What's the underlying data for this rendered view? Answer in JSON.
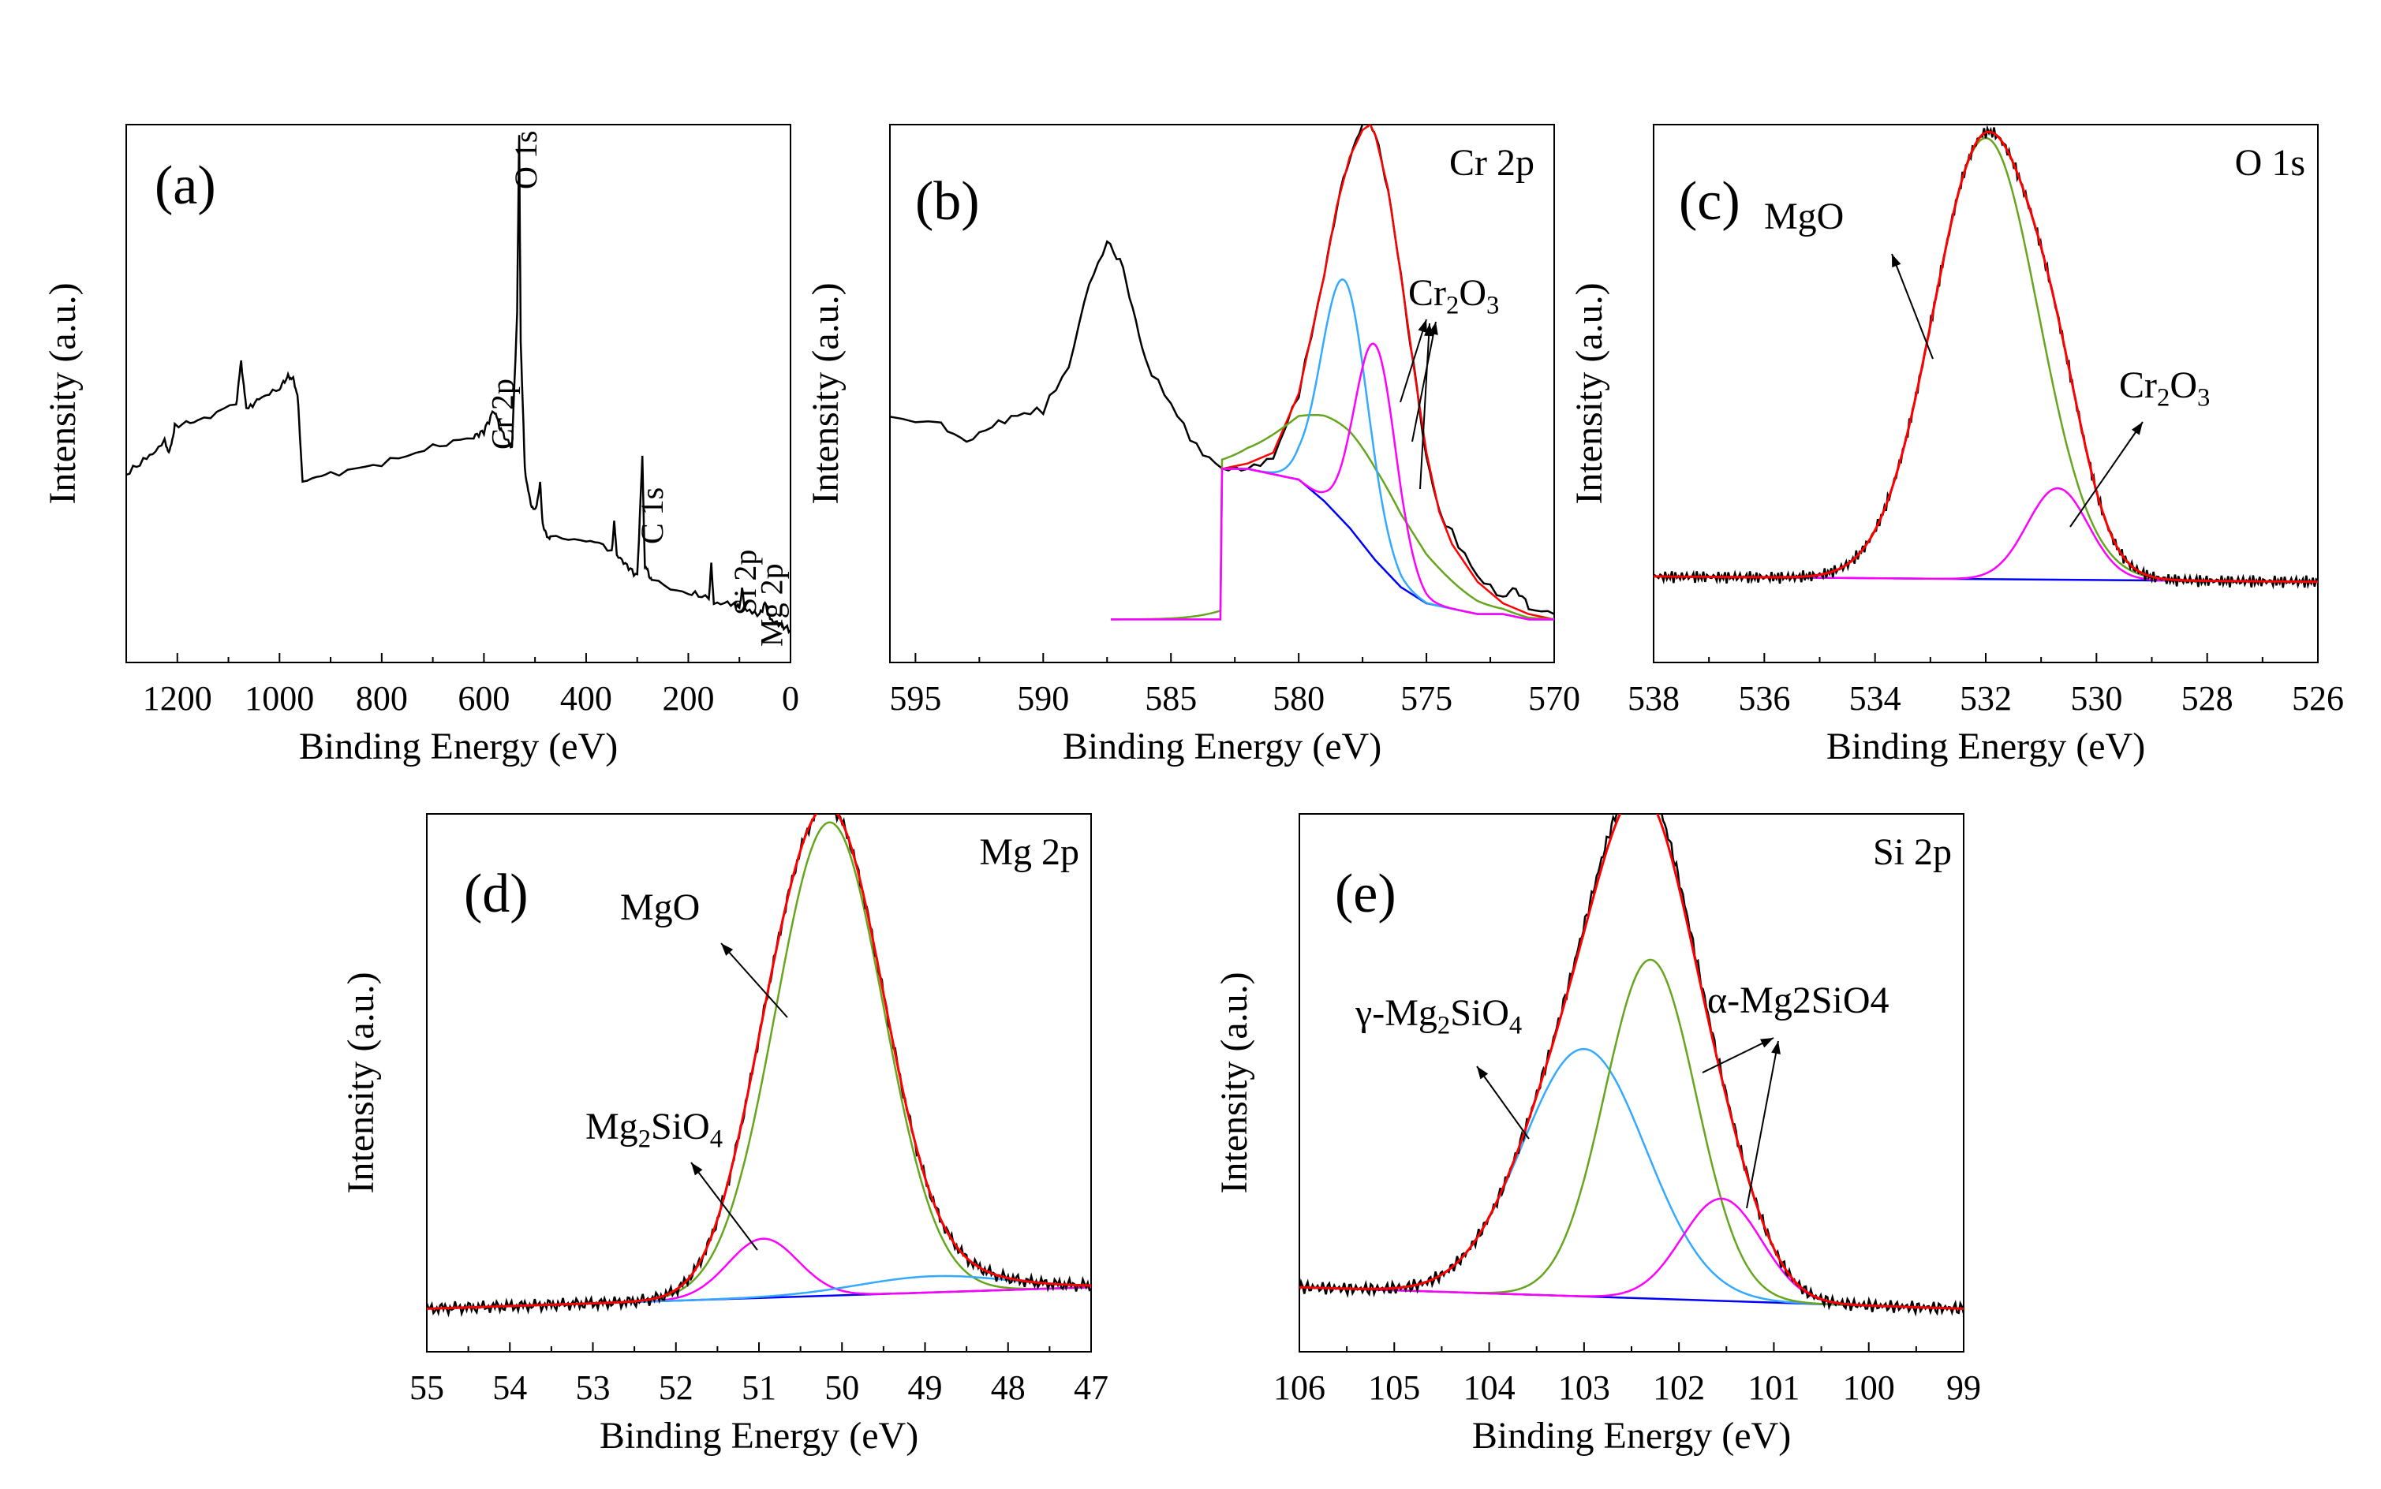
{
  "figure": {
    "description_panels": [
      "a",
      "b",
      "c",
      "d",
      "e"
    ]
  },
  "colors": {
    "data": "#000000",
    "envelope": "#ff0000",
    "background": "#0000ff",
    "green": "#66a61e",
    "cyan": "#33aaff",
    "magenta": "#ff00ff",
    "arrow": "#000000"
  },
  "chart_data": [
    {
      "panel": "(a)",
      "type": "line",
      "title": "",
      "xlabel": "Binding Energy (eV)",
      "ylabel": "Intensity (a.u.)",
      "xlim": [
        1300,
        0
      ],
      "ylim": [
        0,
        1.0
      ],
      "xticks": [
        1200,
        1000,
        800,
        600,
        400,
        200,
        0
      ],
      "xtick_labels": [
        "1200",
        "1000",
        "800",
        "600",
        "400",
        "200",
        "0"
      ],
      "peak_labels": [
        {
          "text": "O 1s",
          "x": 531
        },
        {
          "text": "Cr 2p",
          "x": 577
        },
        {
          "text": "C 1s",
          "x": 284
        },
        {
          "text": "Si 2p",
          "x": 102
        },
        {
          "text": "Mg 2p",
          "x": 50
        }
      ],
      "series": [
        {
          "name": "survey",
          "color": "data",
          "x": [
            1300,
            1260,
            1225,
            1215,
            1205,
            1160,
            1085,
            1075,
            1065,
            1040,
            1000,
            985,
            975,
            965,
            955,
            900,
            800,
            700,
            620,
            600,
            580,
            570,
            560,
            545,
            535,
            531,
            528,
            520,
            510,
            500,
            490,
            485,
            480,
            470,
            400,
            350,
            345,
            340,
            320,
            300,
            290,
            285,
            280,
            270,
            200,
            160,
            155,
            150,
            110,
            100,
            95,
            90,
            60,
            50,
            40,
            20,
            0
          ],
          "y": [
            0.35,
            0.38,
            0.41,
            0.39,
            0.44,
            0.45,
            0.48,
            0.56,
            0.47,
            0.49,
            0.51,
            0.53,
            0.53,
            0.5,
            0.34,
            0.35,
            0.37,
            0.4,
            0.42,
            0.43,
            0.47,
            0.44,
            0.42,
            0.4,
            0.65,
            0.98,
            0.6,
            0.36,
            0.3,
            0.28,
            0.33,
            0.26,
            0.24,
            0.23,
            0.23,
            0.21,
            0.26,
            0.2,
            0.18,
            0.16,
            0.38,
            0.18,
            0.17,
            0.15,
            0.13,
            0.12,
            0.18,
            0.11,
            0.11,
            0.1,
            0.14,
            0.1,
            0.09,
            0.11,
            0.08,
            0.07,
            0.06
          ]
        }
      ]
    },
    {
      "panel": "(b)",
      "type": "line",
      "title": "Cr 2p",
      "xlabel": "Binding Energy (eV)",
      "ylabel": "Intensity (a.u.)",
      "xlim": [
        596,
        570
      ],
      "ylim": [
        0,
        1.0
      ],
      "xticks": [
        595,
        590,
        585,
        580,
        575,
        570
      ],
      "xtick_labels": [
        "595",
        "590",
        "585",
        "580",
        "575",
        "570"
      ],
      "annotations": [
        {
          "text": "Cr",
          "sub": "2",
          "text2": "O",
          "sub2": "3"
        }
      ],
      "series": [
        {
          "name": "raw",
          "color": "data",
          "x": [
            596,
            594,
            593,
            592,
            591,
            590,
            589,
            588.2,
            587.5,
            587,
            586.5,
            586,
            585,
            584,
            583,
            582,
            581,
            580,
            579,
            578.5,
            578,
            577.5,
            577.2,
            577,
            576.5,
            576,
            575.5,
            575,
            574.5,
            574,
            573,
            572,
            571.5,
            571,
            570
          ],
          "y": [
            0.45,
            0.44,
            0.41,
            0.44,
            0.46,
            0.47,
            0.55,
            0.7,
            0.78,
            0.75,
            0.66,
            0.56,
            0.48,
            0.4,
            0.36,
            0.36,
            0.38,
            0.5,
            0.72,
            0.85,
            0.94,
            1.0,
            1.0,
            0.98,
            0.88,
            0.72,
            0.55,
            0.38,
            0.28,
            0.24,
            0.16,
            0.12,
            0.14,
            0.1,
            0.09
          ]
        },
        {
          "name": "envelope",
          "color": "envelope",
          "x": [
            583,
            582,
            581,
            580,
            579,
            578.5,
            578,
            577.5,
            577.2,
            577,
            576.5,
            576,
            575.5,
            575,
            574.5,
            574,
            573,
            572,
            571,
            570
          ],
          "y": [
            0.36,
            0.37,
            0.39,
            0.5,
            0.72,
            0.85,
            0.94,
            0.99,
            1.0,
            0.98,
            0.88,
            0.72,
            0.55,
            0.39,
            0.28,
            0.22,
            0.15,
            0.11,
            0.09,
            0.08
          ]
        },
        {
          "name": "background",
          "color": "background",
          "x": [
            583,
            582,
            581,
            580,
            579,
            578,
            577,
            576,
            575,
            574,
            573,
            572,
            571,
            570
          ],
          "y": [
            0.36,
            0.36,
            0.35,
            0.34,
            0.3,
            0.25,
            0.19,
            0.14,
            0.11,
            0.1,
            0.09,
            0.09,
            0.08,
            0.08
          ]
        },
        {
          "name": "peak-broad",
          "color": "green",
          "gauss": {
            "center": 577.8,
            "height": 0.18,
            "sigma": 2.4
          }
        },
        {
          "name": "peak-1",
          "color": "cyan",
          "gauss": {
            "center": 578.2,
            "height": 0.45,
            "sigma": 0.9
          }
        },
        {
          "name": "peak-2",
          "color": "magenta",
          "gauss": {
            "center": 577.0,
            "height": 0.4,
            "sigma": 0.8
          }
        }
      ]
    },
    {
      "panel": "(c)",
      "type": "line",
      "title": "O 1s",
      "xlabel": "Binding Energy (eV)",
      "ylabel": "Intensity (a.u.)",
      "xlim": [
        538,
        526
      ],
      "ylim": [
        0,
        1.0
      ],
      "xticks": [
        538,
        536,
        534,
        532,
        530,
        528,
        526
      ],
      "xtick_labels": [
        "538",
        "536",
        "534",
        "532",
        "530",
        "528",
        "526"
      ],
      "annotations": [
        {
          "text": "MgO"
        },
        {
          "text": "Cr",
          "sub": "2",
          "text2": "O",
          "sub2": "3"
        }
      ],
      "series": [
        {
          "name": "background",
          "color": "background",
          "x": [
            538,
            526
          ],
          "y": [
            0.16,
            0.15
          ]
        },
        {
          "name": "peak-MgO",
          "color": "green",
          "gauss": {
            "center": 532.0,
            "height": 0.82,
            "sigma": 0.95
          }
        },
        {
          "name": "peak-Cr2O3",
          "color": "magenta",
          "gauss": {
            "center": 530.7,
            "height": 0.17,
            "sigma": 0.55
          }
        }
      ]
    },
    {
      "panel": "(d)",
      "type": "line",
      "title": "Mg 2p",
      "xlabel": "Binding Energy (eV)",
      "ylabel": "Intensity (a.u.)",
      "xlim": [
        55,
        47
      ],
      "ylim": [
        0,
        1.0
      ],
      "xticks": [
        55,
        54,
        53,
        52,
        51,
        50,
        49,
        48,
        47
      ],
      "xtick_labels": [
        "55",
        "54",
        "53",
        "52",
        "51",
        "50",
        "49",
        "48",
        "47"
      ],
      "annotations": [
        {
          "text": "MgO"
        },
        {
          "text": "Mg",
          "sub": "2",
          "text2": "SiO",
          "sub2": "4"
        }
      ],
      "series": [
        {
          "name": "background",
          "color": "background",
          "x": [
            55,
            47
          ],
          "y": [
            0.08,
            0.12
          ]
        },
        {
          "name": "peak-MgO",
          "color": "green",
          "gauss": {
            "center": 50.15,
            "height": 0.88,
            "sigma": 0.65
          }
        },
        {
          "name": "peak-Mg2SiO4",
          "color": "magenta",
          "gauss": {
            "center": 50.95,
            "height": 0.11,
            "sigma": 0.42
          }
        },
        {
          "name": "peak-minor",
          "color": "cyan",
          "gauss": {
            "center": 48.9,
            "height": 0.03,
            "sigma": 0.9
          }
        }
      ]
    },
    {
      "panel": "(e)",
      "type": "line",
      "title": "Si 2p",
      "xlabel": "Binding Energy (eV)",
      "ylabel": "Intensity (a.u.)",
      "xlim": [
        106,
        99
      ],
      "ylim": [
        0,
        1.0
      ],
      "xticks": [
        106,
        105,
        104,
        103,
        102,
        101,
        100,
        99
      ],
      "xtick_labels": [
        "106",
        "105",
        "104",
        "103",
        "102",
        "101",
        "100",
        "99"
      ],
      "annotations": [
        {
          "text": "γ-Mg",
          "sub": "2",
          "text2": "SiO",
          "sub2": "4"
        },
        {
          "text": "α-Mg2SiO4"
        }
      ],
      "series": [
        {
          "name": "background",
          "color": "background",
          "x": [
            106,
            99
          ],
          "y": [
            0.12,
            0.08
          ]
        },
        {
          "name": "peak-gamma",
          "color": "cyan",
          "gauss": {
            "center": 103.0,
            "height": 0.46,
            "sigma": 0.65
          }
        },
        {
          "name": "peak-alpha",
          "color": "green",
          "gauss": {
            "center": 102.3,
            "height": 0.63,
            "sigma": 0.48
          }
        },
        {
          "name": "peak-third",
          "color": "magenta",
          "gauss": {
            "center": 101.55,
            "height": 0.19,
            "sigma": 0.42
          }
        }
      ]
    }
  ]
}
